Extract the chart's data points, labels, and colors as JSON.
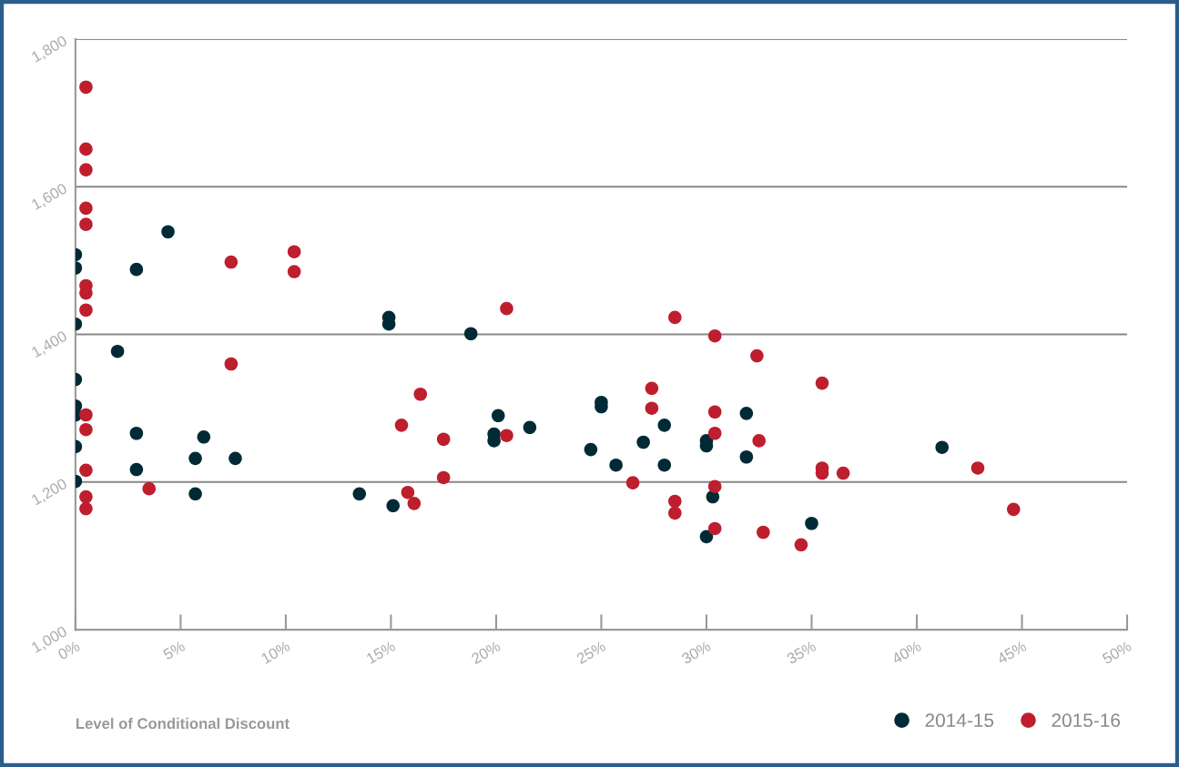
{
  "chart_data": {
    "type": "scatter",
    "xlabel": "Level of Conditional Discount",
    "xlim": [
      0,
      50
    ],
    "ylim": [
      1000,
      1800
    ],
    "xticks": [
      {
        "value": 0,
        "label": "0%"
      },
      {
        "value": 5,
        "label": "5%"
      },
      {
        "value": 10,
        "label": "10%"
      },
      {
        "value": 15,
        "label": "15%"
      },
      {
        "value": 20,
        "label": "20%"
      },
      {
        "value": 25,
        "label": "25%"
      },
      {
        "value": 30,
        "label": "30%"
      },
      {
        "value": 35,
        "label": "35%"
      },
      {
        "value": 40,
        "label": "40%"
      },
      {
        "value": 45,
        "label": "45%"
      },
      {
        "value": 50,
        "label": "50%"
      }
    ],
    "yticks": [
      {
        "value": 1000,
        "label": "1,000"
      },
      {
        "value": 1200,
        "label": "1,200"
      },
      {
        "value": 1400,
        "label": "1,400"
      },
      {
        "value": 1600,
        "label": "1,600"
      },
      {
        "value": 1800,
        "label": "1,800"
      }
    ],
    "grid": "y",
    "legend": "bottom right",
    "marker": "circle",
    "series": [
      {
        "name": "2014-15",
        "color": "#002b36",
        "x": [
          0,
          0,
          0,
          0,
          0,
          0,
          0,
          0,
          4.4,
          2.9,
          2.0,
          2.9,
          2.9,
          5.7,
          6.1,
          5.7,
          7.6,
          14.9,
          14.9,
          18.8,
          13.5,
          15.1,
          20.1,
          19.9,
          19.9,
          21.6,
          25.0,
          25.0,
          24.5,
          25.7,
          27.0,
          28.0,
          28.0,
          30.0,
          30.0,
          30.3,
          30.0,
          31.9,
          31.9,
          35.0,
          41.2
        ],
        "values": [
          1508,
          1490,
          1414,
          1339,
          1303,
          1291,
          1248,
          1201,
          1539,
          1488,
          1377,
          1266,
          1217,
          1232,
          1261,
          1184,
          1232,
          1423,
          1414,
          1401,
          1184,
          1168,
          1290,
          1265,
          1256,
          1274,
          1308,
          1302,
          1244,
          1223,
          1254,
          1277,
          1223,
          1256,
          1249,
          1180,
          1126,
          1293,
          1234,
          1144,
          1247
        ]
      },
      {
        "name": "2015-16",
        "color": "#be1e2d",
        "x": [
          0.5,
          0.5,
          0.5,
          0.5,
          0.5,
          0.5,
          0.5,
          0.5,
          0.5,
          0.5,
          0.5,
          0.5,
          0.5,
          3.5,
          7.4,
          7.4,
          10.4,
          10.4,
          15.5,
          16.4,
          17.5,
          17.5,
          15.8,
          16.1,
          20.5,
          20.5,
          27.4,
          27.4,
          28.5,
          30.4,
          30.4,
          30.4,
          30.4,
          28.5,
          28.5,
          26.5,
          30.4,
          32.4,
          32.5,
          32.7,
          34.5,
          35.5,
          35.5,
          35.5,
          36.5,
          42.9,
          44.6
        ],
        "values": [
          1735,
          1651,
          1623,
          1571,
          1549,
          1466,
          1456,
          1433,
          1291,
          1271,
          1216,
          1180,
          1164,
          1191,
          1498,
          1360,
          1512,
          1485,
          1277,
          1319,
          1258,
          1206,
          1186,
          1171,
          1435,
          1263,
          1327,
          1300,
          1423,
          1398,
          1295,
          1266,
          1194,
          1174,
          1158,
          1199,
          1137,
          1371,
          1256,
          1132,
          1115,
          1334,
          1219,
          1212,
          1212,
          1219,
          1163
        ]
      }
    ]
  }
}
